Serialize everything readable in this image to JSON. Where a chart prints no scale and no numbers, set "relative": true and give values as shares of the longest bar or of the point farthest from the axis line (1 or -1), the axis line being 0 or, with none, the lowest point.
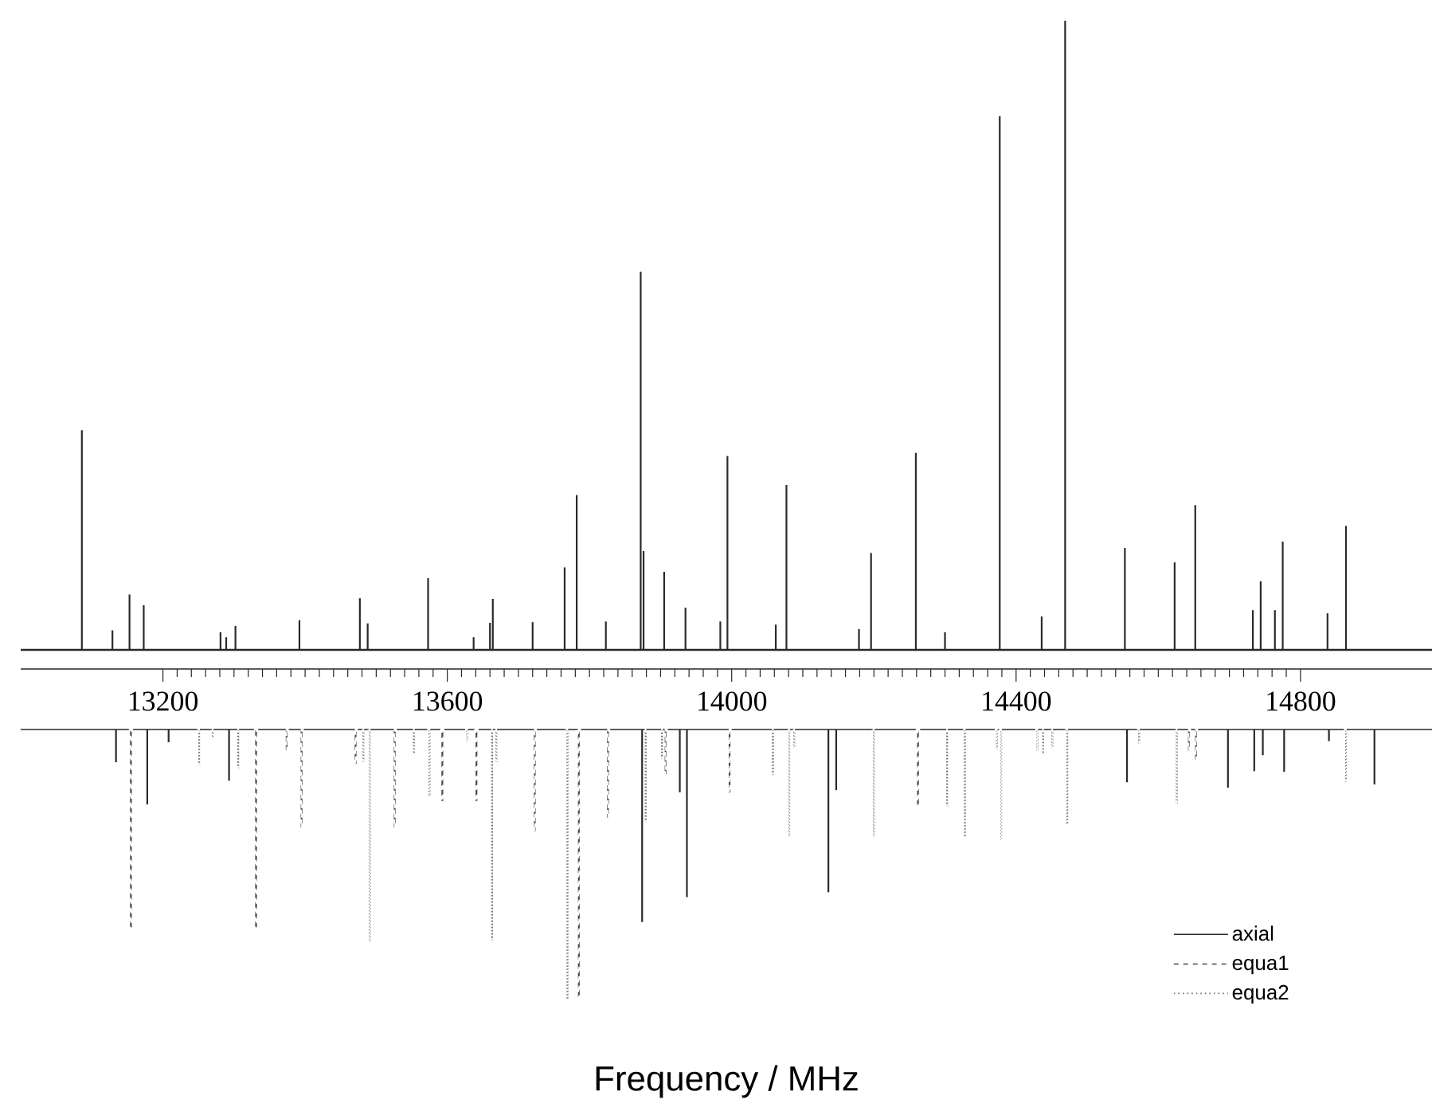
{
  "chart_data": [
    {
      "type": "bar",
      "relative": true,
      "color": "#2a2a2a",
      "tick_labels": "x",
      "xlim": [
        13000,
        14985
      ],
      "xticks": [
        {
          "value": 13200,
          "label": "13200"
        },
        {
          "value": 13600,
          "label": "13600"
        },
        {
          "value": 14000,
          "label": "14000"
        },
        {
          "value": 14400,
          "label": "14400"
        },
        {
          "value": 14800,
          "label": "14800"
        }
      ],
      "x": [
        13086,
        13129,
        13153,
        13173,
        13281,
        13289,
        13302,
        13392,
        13477,
        13488,
        13573,
        13637,
        13660,
        13664,
        13720,
        13765,
        13782,
        13823,
        13872,
        13876,
        13905,
        13935,
        13984,
        13994,
        14062,
        14077,
        14179,
        14196,
        14259,
        14300,
        14377,
        14436,
        14469,
        14553,
        14623,
        14652,
        14733,
        14744,
        14764,
        14775,
        14838,
        14864
      ],
      "values": [
        0.349,
        0.031,
        0.088,
        0.071,
        0.028,
        0.02,
        0.038,
        0.047,
        0.082,
        0.042,
        0.114,
        0.02,
        0.043,
        0.081,
        0.044,
        0.131,
        0.246,
        0.045,
        0.601,
        0.157,
        0.124,
        0.067,
        0.045,
        0.308,
        0.04,
        0.262,
        0.033,
        0.154,
        0.313,
        0.028,
        0.848,
        0.053,
        1,
        0.162,
        0.139,
        0.23,
        0.063,
        0.109,
        0.063,
        0.172,
        0.058,
        0.197
      ]
    },
    {
      "type": "bar",
      "relative": true,
      "tick_labels": false,
      "xlim": [
        13000,
        14985
      ],
      "xlabel": "Frequency / MHz",
      "legend": "bottom right",
      "series": [
        {
          "name": "axial",
          "color": "#2a2a2a",
          "line_style": "solid",
          "x": [
            13134,
            13178,
            13208,
            13293,
            13874,
            13927,
            13937,
            14136,
            14147,
            14556,
            14698,
            14735,
            14747,
            14777,
            14840,
            14904
          ],
          "values": [
            -0.121,
            -0.277,
            -0.047,
            -0.189,
            -0.711,
            -0.232,
            -0.619,
            -0.601,
            -0.224,
            -0.195,
            -0.215,
            -0.154,
            -0.095,
            -0.156,
            -0.043,
            -0.203
          ]
        },
        {
          "name": "equa1",
          "color": "#484848",
          "line_style": "dashed",
          "x": [
            13155,
            13331,
            13374,
            13395,
            13471,
            13526,
            13593,
            13641,
            13723,
            13785,
            13826,
            13907,
            13997,
            14262,
            14643,
            14653
          ],
          "values": [
            -0.736,
            -0.736,
            -0.076,
            -0.361,
            -0.127,
            -0.361,
            -0.264,
            -0.264,
            -0.375,
            -0.99,
            -0.326,
            -0.166,
            -0.232,
            -0.283,
            -0.078,
            -0.111
          ]
        },
        {
          "name": "equa2",
          "color": "#707070",
          "line_style": "dotted",
          "x": [
            13251,
            13270,
            13306,
            13482,
            13491,
            13553,
            13575,
            13628,
            13663,
            13669,
            13769,
            13879,
            13902,
            14058,
            14081,
            14088,
            14200,
            14303,
            14328,
            14373,
            14379,
            14430,
            14438,
            14451,
            14472,
            14573,
            14626,
            14864
          ],
          "values": [
            -0.135,
            -0.033,
            -0.146,
            -0.121,
            -0.785,
            -0.092,
            -0.248,
            -0.043,
            -0.781,
            -0.121,
            -1,
            -0.34,
            -0.111,
            -0.17,
            -0.397,
            -0.068,
            -0.397,
            -0.287,
            -0.4,
            -0.072,
            -0.408,
            -0.078,
            -0.092,
            -0.068,
            -0.353,
            -0.053,
            -0.274,
            -0.195
          ]
        }
      ]
    }
  ]
}
